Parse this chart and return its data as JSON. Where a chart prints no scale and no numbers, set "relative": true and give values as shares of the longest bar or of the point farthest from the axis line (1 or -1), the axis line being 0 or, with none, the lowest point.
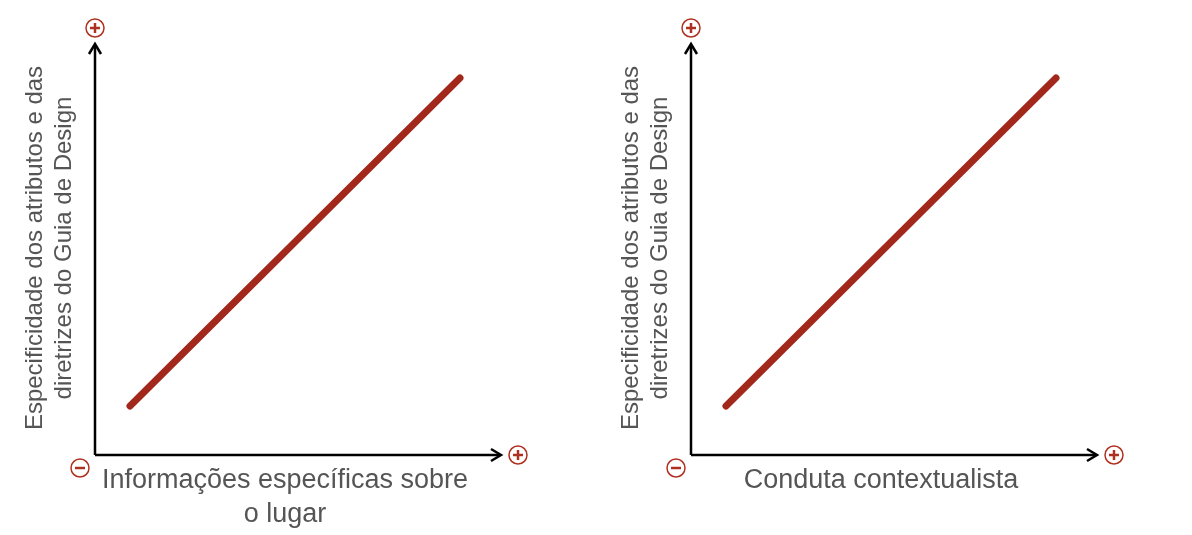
{
  "chart_data": [
    {
      "type": "line",
      "relative": true,
      "categories": [
        null,
        null
      ],
      "xlabel": "Informações específicas sobre o lugar",
      "ylabel": "Especificidade dos atributos e das diretrizes do Guia de Design",
      "series": [
        {
          "color": "#a3281c",
          "values": [
            0.13,
            1
          ]
        }
      ]
    },
    {
      "type": "line",
      "relative": true,
      "categories": [
        null,
        null
      ],
      "xlabel": "Conduta contextualista",
      "ylabel": "Especificidade dos atributos e das diretrizes do Guia de Design",
      "series": [
        {
          "color": "#a3281c",
          "values": [
            0.13,
            1
          ]
        }
      ]
    }
  ]
}
